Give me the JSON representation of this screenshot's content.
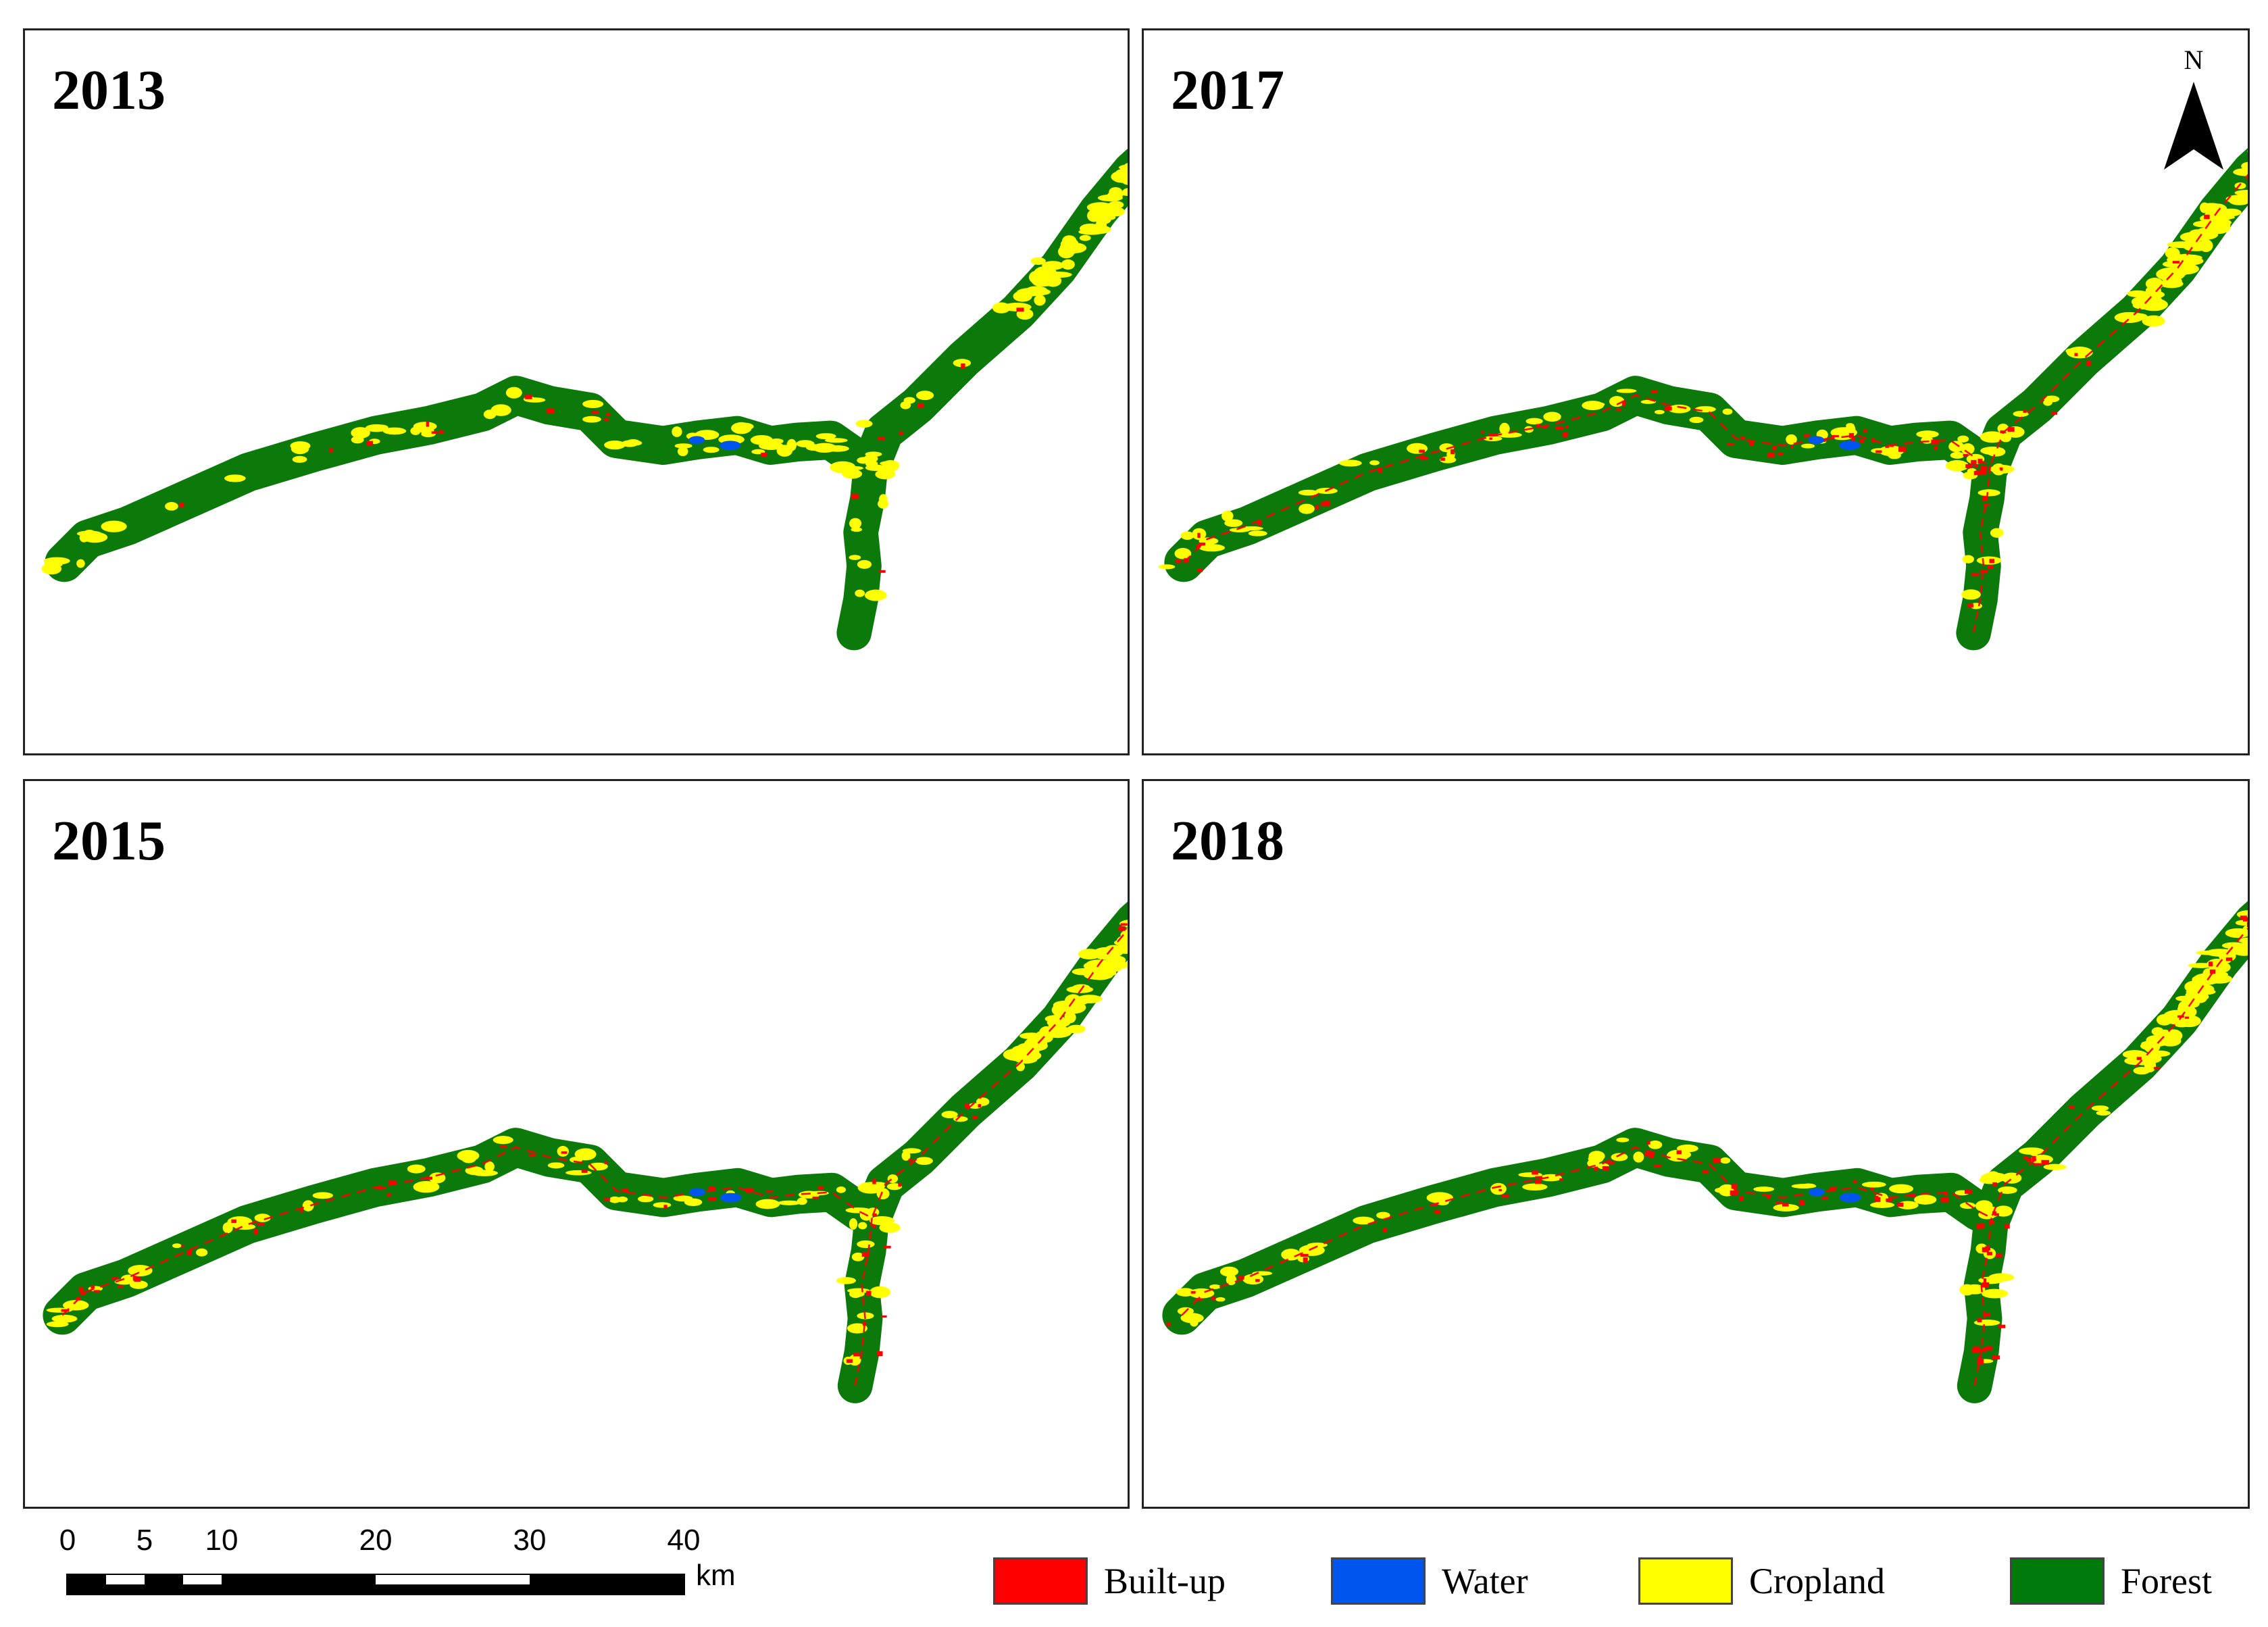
{
  "panels": [
    {
      "id": "p2013",
      "year": "2013"
    },
    {
      "id": "p2017",
      "year": "2017"
    },
    {
      "id": "p2015",
      "year": "2015"
    },
    {
      "id": "p2018",
      "year": "2018"
    }
  ],
  "north_arrow": {
    "label": "N"
  },
  "scale_bar": {
    "ticks": [
      "0",
      "5",
      "10",
      "20",
      "30",
      "40"
    ],
    "unit": "km"
  },
  "legend": [
    {
      "label": "Built-up",
      "color": "#ff0000"
    },
    {
      "label": "Water",
      "color": "#0055ee"
    },
    {
      "label": "Cropland",
      "color": "#ffff00"
    },
    {
      "label": "Forest",
      "color": "#007a0a"
    }
  ],
  "colors": {
    "forest": "#0b7a0b",
    "builtup": "#ff0000",
    "water": "#0055ee",
    "cropland": "#ffff00",
    "frame": "#222222"
  }
}
